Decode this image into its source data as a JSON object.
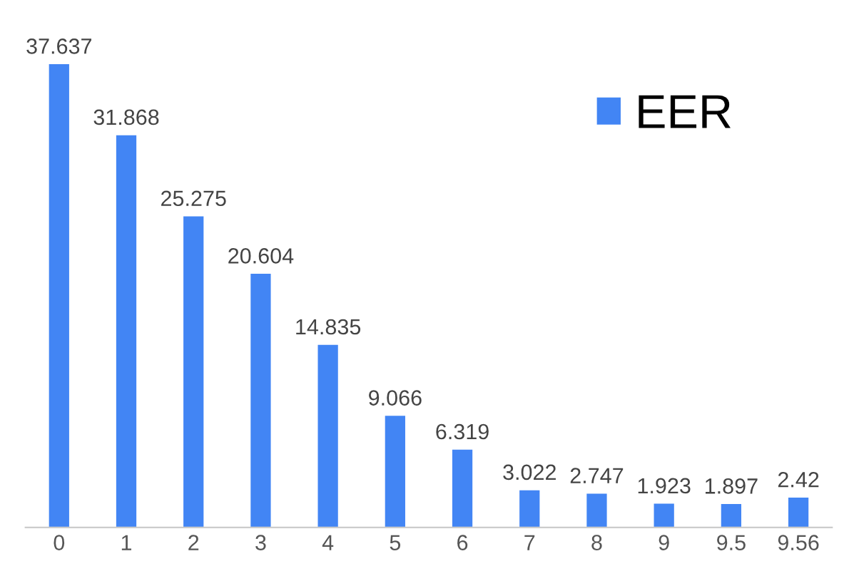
{
  "chart_data": {
    "type": "bar",
    "categories": [
      "0",
      "1",
      "2",
      "3",
      "4",
      "5",
      "6",
      "7",
      "8",
      "9",
      "9.5",
      "9.56"
    ],
    "series": [
      {
        "name": "EER",
        "color": "#4285f4",
        "values": [
          37.637,
          31.868,
          25.275,
          20.604,
          14.835,
          9.066,
          6.319,
          3.022,
          2.747,
          1.923,
          1.897,
          2.42
        ]
      }
    ],
    "data_labels": true,
    "legend": "top right",
    "grid": false
  }
}
